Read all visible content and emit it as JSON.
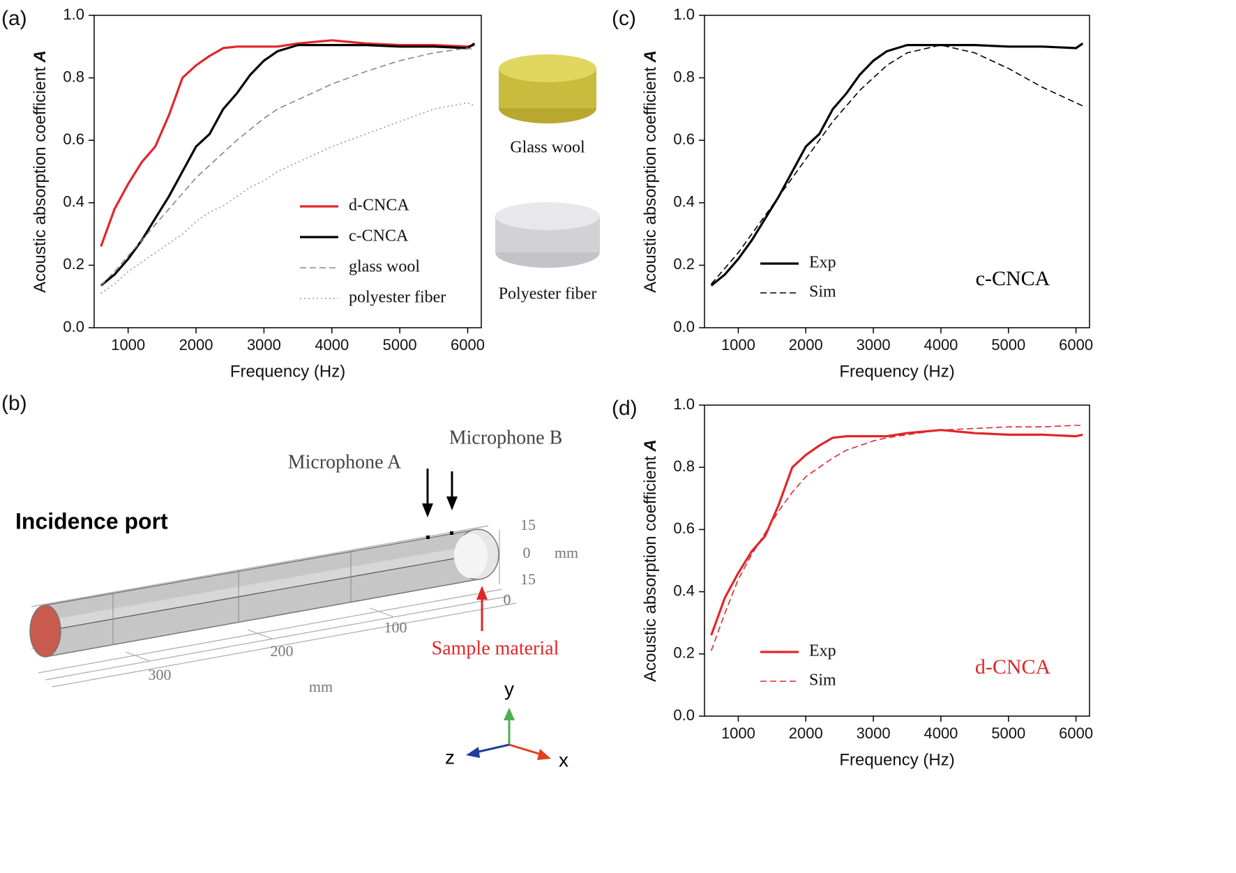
{
  "chart_data": [
    {
      "type": "line",
      "panel_label": "(a)",
      "x_label": "Frequency (Hz)",
      "y_label": "Acoustic absorption coefficient",
      "y_label_symbol": "A",
      "xlim": [
        500,
        6200
      ],
      "ylim": [
        0,
        1.0
      ],
      "xticks": [
        1000,
        2000,
        3000,
        4000,
        5000,
        6000
      ],
      "yticks": [
        {
          "value": 0,
          "label": "0.0"
        },
        0.2,
        0.4,
        0.6,
        0.8,
        {
          "value": 1.0,
          "label": "1.0"
        }
      ],
      "legend": "lower right",
      "x": [
        600,
        800,
        1000,
        1200,
        1400,
        1600,
        1800,
        2000,
        2200,
        2400,
        2600,
        2800,
        3000,
        3200,
        3500,
        4000,
        4500,
        5000,
        5500,
        6000,
        6100
      ],
      "series": [
        {
          "name": "d-CNCA",
          "color": "#e0262b",
          "style": "solid",
          "values": [
            0.26,
            0.38,
            0.46,
            0.53,
            0.58,
            0.68,
            0.8,
            0.84,
            0.87,
            0.895,
            0.9,
            0.9,
            0.9,
            0.9,
            0.91,
            0.92,
            0.91,
            0.905,
            0.905,
            0.9,
            0.905
          ]
        },
        {
          "name": "c-CNCA",
          "color": "#000000",
          "style": "solid",
          "values": [
            0.135,
            0.17,
            0.22,
            0.28,
            0.35,
            0.42,
            0.5,
            0.58,
            0.62,
            0.7,
            0.75,
            0.81,
            0.855,
            0.885,
            0.905,
            0.905,
            0.905,
            0.9,
            0.9,
            0.895,
            0.91
          ]
        },
        {
          "name": "glass wool",
          "color": "#888888",
          "style": "dashed",
          "values": [
            0.135,
            0.18,
            0.23,
            0.28,
            0.33,
            0.38,
            0.43,
            0.48,
            0.52,
            0.56,
            0.6,
            0.635,
            0.67,
            0.7,
            0.73,
            0.78,
            0.82,
            0.855,
            0.88,
            0.895,
            0.89
          ]
        },
        {
          "name": "polyester fiber",
          "color": "#999999",
          "style": "dotted",
          "values": [
            0.11,
            0.14,
            0.18,
            0.21,
            0.24,
            0.27,
            0.3,
            0.34,
            0.37,
            0.39,
            0.42,
            0.45,
            0.47,
            0.5,
            0.53,
            0.58,
            0.62,
            0.66,
            0.7,
            0.72,
            0.71
          ]
        }
      ],
      "image_captions": [
        "Glass wool",
        "Polyester fiber"
      ]
    },
    {
      "type": "line",
      "panel_label": "(c)",
      "x_label": "Frequency (Hz)",
      "y_label": "Acoustic absorption coefficient",
      "y_label_symbol": "A",
      "xlim": [
        500,
        6200
      ],
      "ylim": [
        0,
        1.0
      ],
      "xticks": [
        1000,
        2000,
        3000,
        4000,
        5000,
        6000
      ],
      "yticks": [
        {
          "value": 0,
          "label": "0.0"
        },
        0.2,
        0.4,
        0.6,
        0.8,
        {
          "value": 1.0,
          "label": "1.0"
        }
      ],
      "legend": "lower left",
      "annotation": {
        "text": "c-CNCA",
        "color": "#000000"
      },
      "x": [
        600,
        800,
        1000,
        1200,
        1400,
        1600,
        1800,
        2000,
        2200,
        2400,
        2600,
        2800,
        3000,
        3200,
        3500,
        4000,
        4500,
        5000,
        5500,
        6000,
        6100
      ],
      "series": [
        {
          "name": "Exp",
          "color": "#000000",
          "style": "solid",
          "values": [
            0.135,
            0.17,
            0.22,
            0.28,
            0.35,
            0.42,
            0.5,
            0.58,
            0.62,
            0.7,
            0.75,
            0.81,
            0.855,
            0.885,
            0.905,
            0.905,
            0.905,
            0.9,
            0.9,
            0.895,
            0.91
          ]
        },
        {
          "name": "Sim",
          "color": "#000000",
          "style": "dashed",
          "values": [
            0.14,
            0.19,
            0.24,
            0.3,
            0.36,
            0.42,
            0.48,
            0.54,
            0.6,
            0.66,
            0.71,
            0.76,
            0.8,
            0.84,
            0.88,
            0.905,
            0.88,
            0.83,
            0.77,
            0.72,
            0.71
          ]
        }
      ]
    },
    {
      "type": "line",
      "panel_label": "(d)",
      "x_label": "Frequency (Hz)",
      "y_label": "Acoustic absorption coefficient",
      "y_label_symbol": "A",
      "xlim": [
        500,
        6200
      ],
      "ylim": [
        0,
        1.0
      ],
      "xticks": [
        1000,
        2000,
        3000,
        4000,
        5000,
        6000
      ],
      "yticks": [
        {
          "value": 0,
          "label": "0.0"
        },
        0.2,
        0.4,
        0.6,
        0.8,
        {
          "value": 1.0,
          "label": "1.0"
        }
      ],
      "legend": "lower left",
      "annotation": {
        "text": "d-CNCA",
        "color": "#e0262b"
      },
      "x": [
        600,
        800,
        1000,
        1200,
        1400,
        1600,
        1800,
        2000,
        2200,
        2400,
        2600,
        2800,
        3000,
        3200,
        3500,
        4000,
        4500,
        5000,
        5500,
        6000,
        6100
      ],
      "series": [
        {
          "name": "Exp",
          "color": "#e0262b",
          "style": "solid",
          "values": [
            0.26,
            0.38,
            0.46,
            0.53,
            0.58,
            0.68,
            0.8,
            0.84,
            0.87,
            0.895,
            0.9,
            0.9,
            0.9,
            0.9,
            0.91,
            0.92,
            0.91,
            0.905,
            0.905,
            0.9,
            0.905
          ]
        },
        {
          "name": "Sim",
          "color": "#e0262b",
          "style": "dashed",
          "values": [
            0.21,
            0.33,
            0.44,
            0.52,
            0.59,
            0.66,
            0.72,
            0.77,
            0.8,
            0.83,
            0.855,
            0.87,
            0.885,
            0.895,
            0.905,
            0.92,
            0.925,
            0.93,
            0.93,
            0.935,
            0.935
          ]
        }
      ]
    }
  ],
  "diagram": {
    "panel_label": "(b)",
    "texts": [
      "Microphone B",
      "Microphone A",
      "Incidence port",
      "15",
      "0",
      "mm",
      "15",
      "0",
      "100",
      "200",
      "300",
      "mm",
      "Sample material",
      "y",
      "z",
      "x"
    ]
  }
}
